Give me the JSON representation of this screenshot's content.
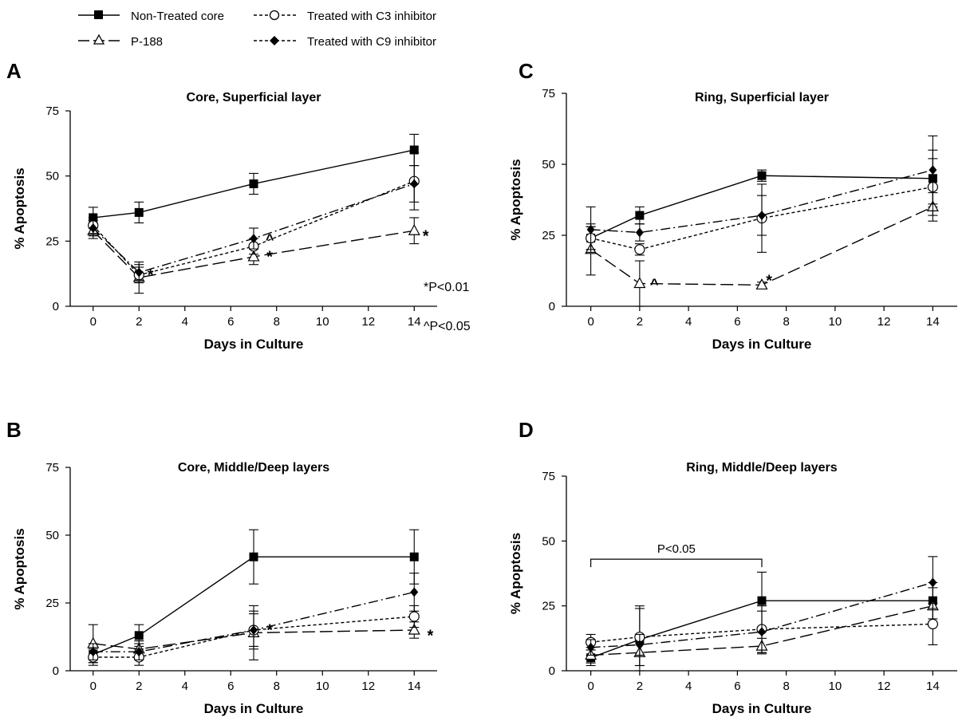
{
  "legend": [
    {
      "label": "Non-Treated core",
      "marker": "square-filled",
      "dash": "solid"
    },
    {
      "label": "P-188",
      "marker": "triangle-open",
      "dash": "long-dash"
    },
    {
      "label": "Treated with C3 inhibitor",
      "marker": "circle-open",
      "dash": "short-dash"
    },
    {
      "label": "Treated with C9 inhibitor",
      "marker": "diamond-filled",
      "dash": "dash-dot"
    }
  ],
  "significance": {
    "p01": "*P<0.01",
    "p05": "^P<0.05"
  },
  "chart_data": [
    {
      "id": "A",
      "panel_letter": "A",
      "type": "line",
      "title": "Core, Superficial layer",
      "xlabel": "Days in Culture",
      "ylabel": "% Apoptosis",
      "xlim": [
        -1,
        15
      ],
      "ylim": [
        0,
        75
      ],
      "xticks": [
        0,
        2,
        4,
        6,
        8,
        10,
        12,
        14
      ],
      "yticks": [
        0,
        25,
        50,
        75
      ],
      "series": [
        {
          "name": "Non-Treated core",
          "x": [
            0,
            2,
            7,
            14
          ],
          "y": [
            34,
            36,
            47,
            60
          ],
          "err": [
            4,
            4,
            4,
            6
          ]
        },
        {
          "name": "P-188",
          "x": [
            0,
            2,
            7,
            14
          ],
          "y": [
            29,
            11,
            19,
            29
          ],
          "err": [
            3,
            6,
            3,
            5
          ]
        },
        {
          "name": "Treated with C3 inhibitor",
          "x": [
            0,
            2,
            7,
            14
          ],
          "y": [
            31,
            12,
            23,
            48
          ],
          "err": [
            3,
            3,
            3,
            11
          ]
        },
        {
          "name": "Treated with C9 inhibitor",
          "x": [
            0,
            2,
            7,
            14
          ],
          "y": [
            30,
            13,
            26,
            47
          ],
          "err": [
            3,
            3,
            4,
            7
          ]
        }
      ],
      "annotations": [
        {
          "text": "*",
          "x": 2.5,
          "y": 13
        },
        {
          "text": "^",
          "x": 7.7,
          "y": 27
        },
        {
          "text": "*",
          "x": 7.7,
          "y": 20
        },
        {
          "text": "*",
          "x": 14.5,
          "y": 28
        }
      ]
    },
    {
      "id": "B",
      "panel_letter": "B",
      "type": "line",
      "title": "Core, Middle/Deep layers",
      "xlabel": "Days in Culture",
      "ylabel": "% Apoptosis",
      "xlim": [
        -1,
        15
      ],
      "ylim": [
        0,
        75
      ],
      "xticks": [
        0,
        2,
        4,
        6,
        8,
        10,
        12,
        14
      ],
      "yticks": [
        0,
        25,
        50,
        75
      ],
      "series": [
        {
          "name": "Non-Treated core",
          "x": [
            0,
            2,
            7,
            14
          ],
          "y": [
            6,
            13,
            42,
            42
          ],
          "err": [
            3,
            4,
            10,
            10
          ]
        },
        {
          "name": "P-188",
          "x": [
            0,
            2,
            7,
            14
          ],
          "y": [
            10,
            8,
            14,
            15
          ],
          "err": [
            7,
            3,
            10,
            3
          ]
        },
        {
          "name": "Treated with C3 inhibitor",
          "x": [
            0,
            2,
            7,
            14
          ],
          "y": [
            5,
            5,
            15,
            20
          ],
          "err": [
            3,
            3,
            6,
            4
          ]
        },
        {
          "name": "Treated with C9 inhibitor",
          "x": [
            0,
            2,
            7,
            14
          ],
          "y": [
            7,
            7,
            15,
            29
          ],
          "err": [
            3,
            3,
            7,
            7
          ]
        }
      ],
      "annotations": [
        {
          "text": "*",
          "x": 7.7,
          "y": 16
        },
        {
          "text": "*",
          "x": 14.7,
          "y": 14
        }
      ]
    },
    {
      "id": "C",
      "panel_letter": "C",
      "type": "line",
      "title": "Ring, Superficial layer",
      "xlabel": "Days in Culture",
      "ylabel": "% Apoptosis",
      "xlim": [
        -1,
        15
      ],
      "ylim": [
        0,
        75
      ],
      "xticks": [
        0,
        2,
        4,
        6,
        8,
        10,
        12,
        14
      ],
      "yticks": [
        0,
        25,
        50,
        75
      ],
      "series": [
        {
          "name": "Non-Treated core",
          "x": [
            0,
            2,
            7,
            14
          ],
          "y": [
            24,
            32,
            46,
            45
          ],
          "err": [
            4,
            3,
            2,
            10
          ]
        },
        {
          "name": "P-188",
          "x": [
            0,
            2,
            7,
            14
          ],
          "y": [
            20,
            8,
            7.5,
            35
          ],
          "err": [
            9,
            8,
            1,
            5
          ]
        },
        {
          "name": "Treated with C3 inhibitor",
          "x": [
            0,
            2,
            7,
            14
          ],
          "y": [
            24,
            20,
            31,
            42
          ],
          "err": [
            4,
            2,
            12,
            10
          ]
        },
        {
          "name": "Treated with C9 inhibitor",
          "x": [
            0,
            2,
            7,
            14
          ],
          "y": [
            27,
            26,
            32,
            48
          ],
          "err": [
            8,
            3,
            7,
            12
          ]
        }
      ],
      "annotations": [
        {
          "text": "^",
          "x": 2.6,
          "y": 9
        },
        {
          "text": "*",
          "x": 7.3,
          "y": 10
        }
      ]
    },
    {
      "id": "D",
      "panel_letter": "D",
      "type": "line",
      "title": "Ring, Middle/Deep layers",
      "xlabel": "Days in Culture",
      "ylabel": "% Apoptosis",
      "xlim": [
        -1,
        15
      ],
      "ylim": [
        0,
        75
      ],
      "xticks": [
        0,
        2,
        4,
        6,
        8,
        10,
        12,
        14
      ],
      "yticks": [
        0,
        25,
        50,
        75
      ],
      "series": [
        {
          "name": "Non-Treated core",
          "x": [
            0,
            2,
            7,
            14
          ],
          "y": [
            5,
            12,
            27,
            27
          ],
          "err": [
            3,
            13,
            11,
            7
          ]
        },
        {
          "name": "P-188",
          "x": [
            0,
            2,
            7,
            14
          ],
          "y": [
            6,
            7,
            9.5,
            25
          ],
          "err": [
            3,
            5,
            3,
            7
          ]
        },
        {
          "name": "Treated with C3 inhibitor",
          "x": [
            0,
            2,
            7,
            14
          ],
          "y": [
            11,
            13,
            16,
            18
          ],
          "err": [
            3,
            11,
            9,
            8
          ]
        },
        {
          "name": "Treated with C9 inhibitor",
          "x": [
            0,
            2,
            7,
            14
          ],
          "y": [
            9,
            10,
            15,
            34
          ],
          "err": [
            3,
            4,
            8,
            10
          ]
        }
      ],
      "bracket": {
        "x1": 0,
        "x2": 7,
        "y": 43,
        "label": "P<0.05"
      },
      "annotations": []
    }
  ]
}
